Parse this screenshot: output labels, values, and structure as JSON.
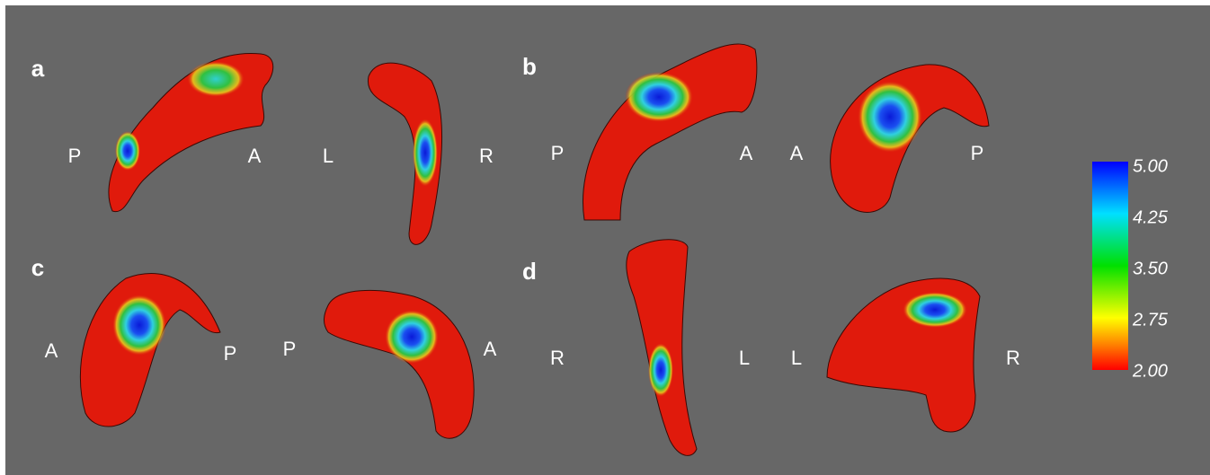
{
  "panels": [
    {
      "label": "a",
      "views": [
        {
          "left": "P",
          "right": "A"
        },
        {
          "left": "L",
          "right": "R"
        }
      ]
    },
    {
      "label": "b",
      "views": [
        {
          "left": "P",
          "right": "A"
        },
        {
          "left": "A",
          "right": "P"
        }
      ]
    },
    {
      "label": "c",
      "views": [
        {
          "left": "A",
          "right": "P"
        },
        {
          "left": "P",
          "right": "A"
        }
      ]
    },
    {
      "label": "d",
      "views": [
        {
          "left": "R",
          "right": "L"
        },
        {
          "left": "L",
          "right": "R"
        }
      ]
    }
  ],
  "colorbar": {
    "ticks": [
      "5.00",
      "4.25",
      "3.50",
      "2.75",
      "2.00"
    ]
  }
}
